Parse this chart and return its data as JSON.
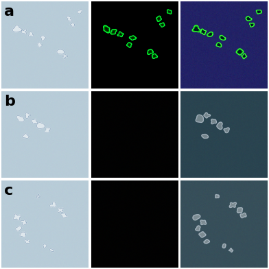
{
  "figure_width": 3.92,
  "figure_height": 3.92,
  "dpi": 100,
  "nrows": 3,
  "ncols": 3,
  "row_labels": [
    "a",
    "b",
    "c"
  ],
  "label_fontsize": 16,
  "label_color": "#000000",
  "outer_bg": "#ffffff",
  "row0_col0_bg": "#b8ccd8",
  "row0_col1_bg": "#000000",
  "row0_col2_bg": "#222266",
  "row1_col0_bg": "#b8ccd8",
  "row1_col1_bg": "#020202",
  "row1_col2_bg": "#2a4450",
  "row2_col0_bg": "#b8ccd8",
  "row2_col1_bg": "#020202",
  "row2_col2_bg": "#374f5a",
  "hspace": 0.03,
  "wspace": 0.03
}
